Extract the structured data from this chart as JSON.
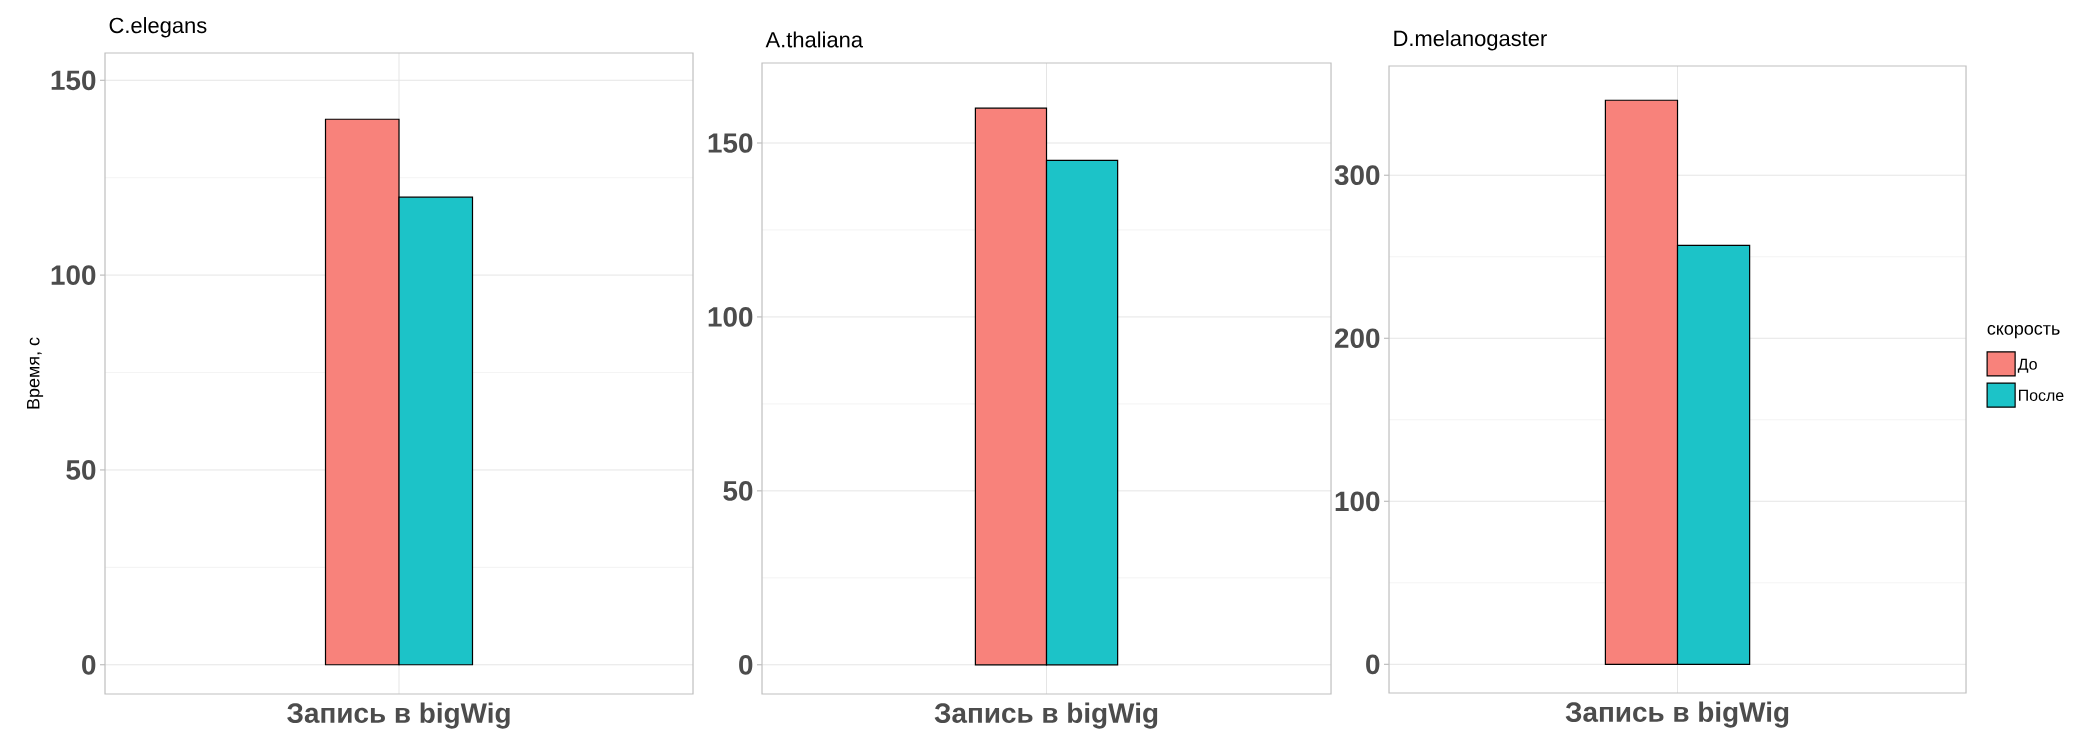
{
  "chart_data": [
    {
      "type": "bar",
      "title": "C.elegans",
      "ylabel": "Время, с",
      "categories": [
        "Запись в bigWig"
      ],
      "ylim": [
        -7.5,
        157
      ],
      "yticks": [
        0,
        50,
        100,
        150
      ],
      "grid": true,
      "legend": false,
      "series": [
        {
          "color": "#f8827b",
          "values": [
            140
          ]
        },
        {
          "color": "#1cc3c8",
          "values": [
            120
          ]
        }
      ]
    },
    {
      "type": "bar",
      "title": "A.thaliana",
      "categories": [
        "Запись в bigWig"
      ],
      "ylim": [
        -8.4,
        173
      ],
      "yticks": [
        0,
        50,
        100,
        150
      ],
      "grid": true,
      "legend": false,
      "series": [
        {
          "color": "#f8827b",
          "values": [
            160
          ]
        },
        {
          "color": "#1cc3c8",
          "values": [
            145
          ]
        }
      ]
    },
    {
      "type": "bar",
      "title": "D.melanogaster",
      "categories": [
        "Запись в bigWig"
      ],
      "ylim": [
        -17.6,
        367
      ],
      "yticks": [
        0,
        100,
        200,
        300
      ],
      "grid": true,
      "legend": "right",
      "legend_title": "скорость",
      "series": [
        {
          "name": "До",
          "color": "#f8827b",
          "values": [
            346
          ]
        },
        {
          "name": "После",
          "color": "#1cc3c8",
          "values": [
            257
          ]
        }
      ]
    }
  ]
}
